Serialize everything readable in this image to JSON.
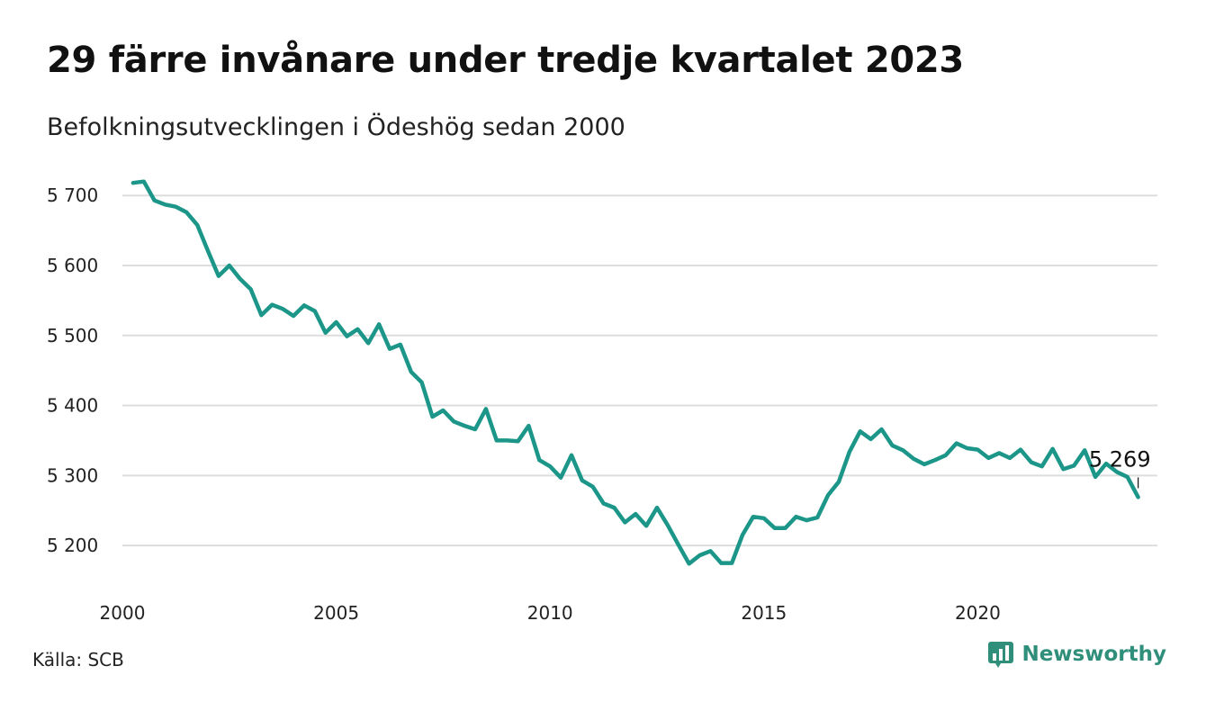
{
  "header": {
    "title": "29 färre invånare under tredje kvartalet 2023",
    "subtitle": "Befolkningsutvecklingen i Ödeshög sedan 2000"
  },
  "footer": {
    "source": "Källa: SCB",
    "brand": "Newsworthy"
  },
  "colors": {
    "series": "#1b9688",
    "grid": "#dddddd",
    "brand": "#2f8f7a"
  },
  "chart_data": {
    "type": "line",
    "title": "29 färre invånare under tredje kvartalet 2023",
    "subtitle": "Befolkningsutvecklingen i Ödeshög sedan 2000",
    "xlabel": "",
    "ylabel": "",
    "xlim": [
      2000,
      2024.2
    ],
    "ylim": [
      5150,
      5735
    ],
    "grid": "horizontal",
    "yticks": [
      5200,
      5300,
      5400,
      5500,
      5600,
      5700
    ],
    "ytick_labels": [
      "5 200",
      "5 300",
      "5 400",
      "5 500",
      "5 600",
      "5 700"
    ],
    "xticks": [
      2000,
      2005,
      2010,
      2015,
      2020
    ],
    "xtick_labels": [
      "2000",
      "2005",
      "2010",
      "2015",
      "2020"
    ],
    "series": [
      {
        "name": "",
        "x": [
          2000.25,
          2000.5,
          2000.75,
          2001.0,
          2001.25,
          2001.5,
          2001.75,
          2002.0,
          2002.25,
          2002.5,
          2002.75,
          2003.0,
          2003.25,
          2003.5,
          2003.75,
          2004.0,
          2004.25,
          2004.5,
          2004.75,
          2005.0,
          2005.25,
          2005.5,
          2005.75,
          2006.0,
          2006.25,
          2006.5,
          2006.75,
          2007.0,
          2007.25,
          2007.5,
          2007.75,
          2008.0,
          2008.25,
          2008.5,
          2008.75,
          2009.0,
          2009.25,
          2009.5,
          2009.75,
          2010.0,
          2010.25,
          2010.5,
          2010.75,
          2011.0,
          2011.25,
          2011.5,
          2011.75,
          2012.0,
          2012.25,
          2012.5,
          2012.75,
          2013.0,
          2013.25,
          2013.5,
          2013.75,
          2014.0,
          2014.25,
          2014.5,
          2014.75,
          2015.0,
          2015.25,
          2015.5,
          2015.75,
          2016.0,
          2016.25,
          2016.5,
          2016.75,
          2017.0,
          2017.25,
          2017.5,
          2017.75,
          2018.0,
          2018.25,
          2018.5,
          2018.75,
          2019.0,
          2019.25,
          2019.5,
          2019.75,
          2020.0,
          2020.25,
          2020.5,
          2020.75,
          2021.0,
          2021.25,
          2021.5,
          2021.75,
          2022.0,
          2022.25,
          2022.5,
          2022.75,
          2023.0,
          2023.25,
          2023.5,
          2023.75
        ],
        "y": [
          5718,
          5720,
          5693,
          5687,
          5684,
          5676,
          5658,
          5621,
          5585,
          5600,
          5581,
          5566,
          5529,
          5544,
          5538,
          5528,
          5543,
          5535,
          5504,
          5519,
          5499,
          5509,
          5489,
          5516,
          5481,
          5487,
          5448,
          5433,
          5384,
          5393,
          5377,
          5371,
          5366,
          5395,
          5350,
          5350,
          5349,
          5371,
          5322,
          5313,
          5297,
          5329,
          5293,
          5284,
          5260,
          5254,
          5233,
          5245,
          5228,
          5254,
          5229,
          5201,
          5174,
          5186,
          5192,
          5175,
          5175,
          5215,
          5241,
          5239,
          5225,
          5225,
          5241,
          5236,
          5240,
          5272,
          5291,
          5334,
          5363,
          5352,
          5366,
          5343,
          5336,
          5324,
          5316,
          5322,
          5329,
          5346,
          5339,
          5337,
          5325,
          5332,
          5325,
          5337,
          5319,
          5313,
          5338,
          5309,
          5314,
          5336,
          5298,
          5317,
          5305,
          5298,
          5269
        ]
      }
    ],
    "annotations": [
      {
        "text": "5 269",
        "x": 2023.75,
        "y": 5269
      }
    ]
  }
}
